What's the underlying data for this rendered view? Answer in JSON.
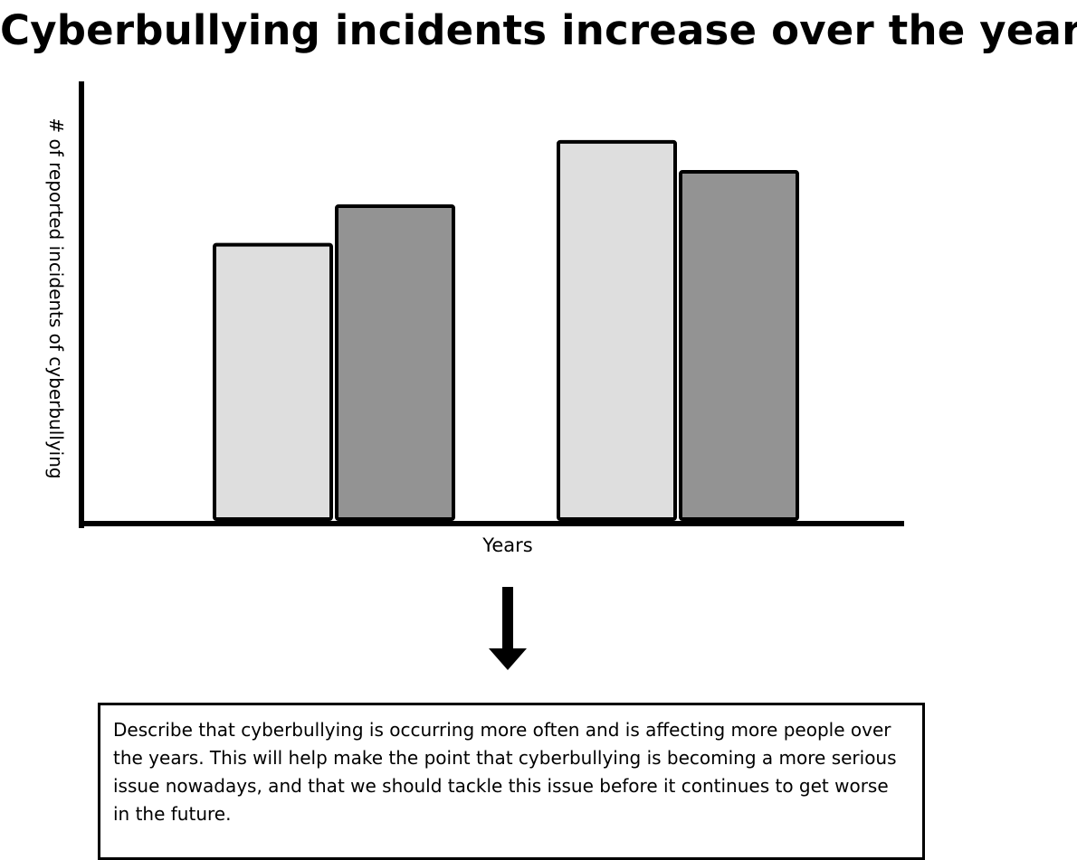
{
  "title": "Cyberbullying incidents increase over the years",
  "chart_data": {
    "type": "bar",
    "title": "Cyberbullying incidents increase over the years",
    "xlabel": "Years",
    "ylabel": "# of reported incidents of cyberbullying",
    "categories": [
      "",
      "",
      "",
      ""
    ],
    "values": [
      6.4,
      7.3,
      8.8,
      8.1
    ],
    "colors": [
      "#dedede",
      "#939393",
      "#dedede",
      "#939393"
    ],
    "ylim": [
      0,
      10
    ],
    "grid": false,
    "legend": "none",
    "tick_labels": "none"
  },
  "note": {
    "text": "Describe that cyberbullying is occurring more often and is affecting more people over the years. This will help make the point that cyberbullying is becoming a more serious issue nowadays, and that we should tackle this issue before it continues to get worse in the future."
  },
  "colors": {
    "outline": "#000000",
    "light_bar": "#dedede",
    "dark_bar": "#939393"
  },
  "icons": {
    "arrow": "arrow-down-icon"
  }
}
